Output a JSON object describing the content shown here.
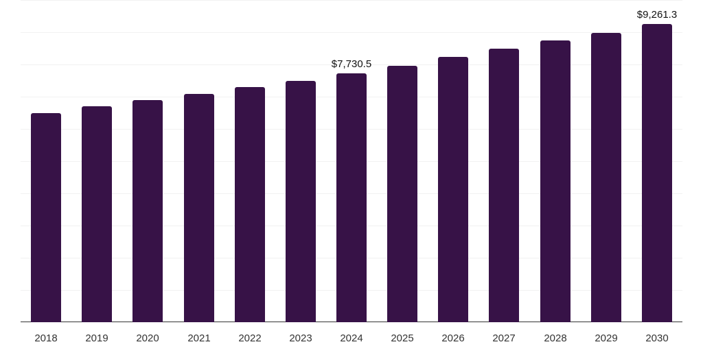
{
  "chart_data": {
    "type": "bar",
    "title": "",
    "xlabel": "",
    "ylabel": "",
    "categories": [
      "2018",
      "2019",
      "2020",
      "2021",
      "2022",
      "2023",
      "2024",
      "2025",
      "2026",
      "2027",
      "2028",
      "2029",
      "2030"
    ],
    "values": [
      6495,
      6706,
      6898,
      7090,
      7303,
      7494,
      7730.5,
      7962,
      8239,
      8494,
      8750,
      8984,
      9261.3
    ],
    "data_labels": [
      {
        "category": "2024",
        "text": "$7,730.5"
      },
      {
        "category": "2030",
        "text": "$9,261.3"
      }
    ],
    "ylim": [
      0,
      10000
    ],
    "grid": true,
    "gridline_step": 1000,
    "y_tick_labels_visible": false,
    "legend": null,
    "bar_color": "#371247",
    "axis_color": "#333333",
    "grid_color": "#f1f1f1"
  }
}
